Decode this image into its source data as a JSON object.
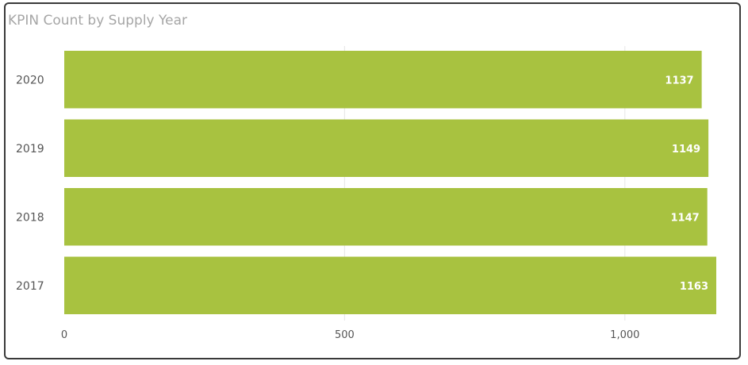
{
  "colors": {
    "bar": "#a8c240",
    "grid": "#e6e6e6",
    "title": "#a6a6a6",
    "label": "#555555"
  },
  "chart_data": {
    "type": "bar",
    "orientation": "horizontal",
    "title": "KPIN Count by Supply Year",
    "categories": [
      "2020",
      "2019",
      "2018",
      "2017"
    ],
    "values": [
      1137,
      1149,
      1147,
      1163
    ],
    "data_labels": [
      "1137",
      "1149",
      "1147",
      "1163"
    ],
    "xlim": [
      0,
      1163
    ],
    "x_ticks": [
      0,
      500,
      1000
    ],
    "x_tick_labels": [
      "0",
      "500",
      "1,000"
    ],
    "grid": true,
    "legend": "none"
  }
}
